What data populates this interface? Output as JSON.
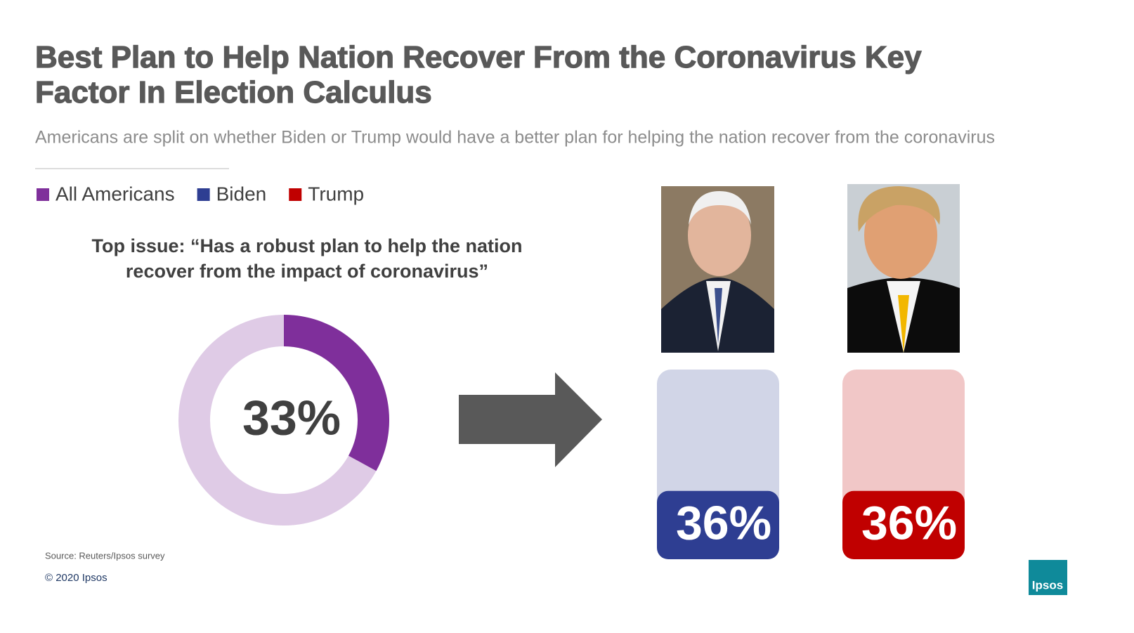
{
  "title": [
    "Best Plan to Help Nation Recover From the Coronavirus Key",
    "Factor In Election Calculus"
  ],
  "subtitle": "Americans are split on whether Biden or Trump would have a better plan for helping the nation recover from the coronavirus",
  "source": "Source: Reuters/Ipsos survey",
  "copyright": "© 2020 Ipsos",
  "logo": "Ipsos",
  "chart_data": [
    {
      "type": "donut",
      "title": [
        "Top issue: “Has a robust plan to help the nation",
        "recover from the impact of coronavirus”"
      ],
      "series": [
        {
          "name": "All Americans",
          "color": "#7f2f9b",
          "values": [
            33
          ],
          "value_labels": [
            "33%"
          ]
        }
      ]
    },
    {
      "type": "bar",
      "ylim": [
        0,
        100
      ],
      "series": [
        {
          "name": "Biden",
          "color": "#2e3e92",
          "values": [
            36
          ],
          "value_labels": [
            "36%"
          ]
        },
        {
          "name": "Trump",
          "color": "#c00000",
          "values": [
            36
          ],
          "value_labels": [
            "36%"
          ]
        }
      ]
    }
  ]
}
